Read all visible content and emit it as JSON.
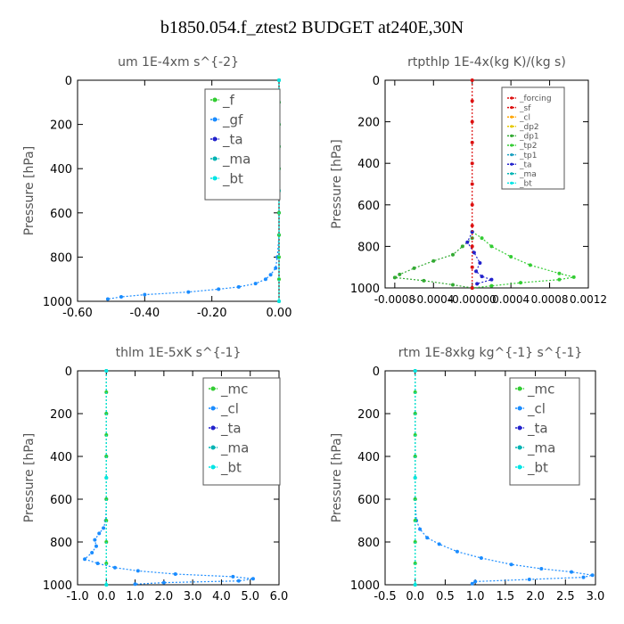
{
  "figure": {
    "title": "b1850.054.f_ztest2  BUDGET at240E,30N"
  },
  "colors": {
    "green": "#33cc33",
    "blue": "#1a8cff",
    "navy": "#2222cc",
    "cyan": "#00e5e5",
    "red": "#dd1111",
    "orange": "#ffa500",
    "yellow": "#e6c800",
    "teal": "#1aa0c0",
    "axis": "#000000",
    "label": "#555555"
  },
  "chart_data": [
    {
      "type": "line",
      "title": "um  1E-4xm s^{-2}",
      "ylabel": "Pressure [hPa]",
      "xlim": [
        -0.6,
        0.0
      ],
      "ylim": [
        0,
        1000
      ],
      "y_inverted": true,
      "xticks": [
        "-0.60",
        "-0.40",
        "-0.20",
        "0.00"
      ],
      "xtick_values": [
        -0.6,
        -0.4,
        -0.2,
        0.0
      ],
      "yticks": [
        "0",
        "200",
        "400",
        "600",
        "800",
        "1000"
      ],
      "ytick_values": [
        0,
        200,
        400,
        600,
        800,
        1000
      ],
      "legend": {
        "position": "top-right",
        "entries": [
          {
            "name": "_f",
            "color": "#33cc33"
          },
          {
            "name": "_gf",
            "color": "#1a8cff"
          },
          {
            "name": "_ta",
            "color": "#2222cc"
          },
          {
            "name": "_ma",
            "color": "#00b3b3"
          },
          {
            "name": "_bt",
            "color": "#00e5e5"
          }
        ]
      },
      "series": [
        {
          "name": "_gf",
          "color": "#1a8cff",
          "points": [
            [
              0.0,
              0
            ],
            [
              0.0,
              100
            ],
            [
              0.0,
              200
            ],
            [
              0.0,
              300
            ],
            [
              0.0,
              400
            ],
            [
              0.0,
              500
            ],
            [
              0.0,
              600
            ],
            [
              0.0,
              700
            ],
            [
              -0.005,
              800
            ],
            [
              -0.01,
              850
            ],
            [
              -0.025,
              880
            ],
            [
              -0.04,
              900
            ],
            [
              -0.07,
              920
            ],
            [
              -0.12,
              935
            ],
            [
              -0.18,
              945
            ],
            [
              -0.27,
              958
            ],
            [
              -0.4,
              970
            ],
            [
              -0.47,
              980
            ],
            [
              -0.51,
              990
            ]
          ]
        },
        {
          "name": "_f",
          "color": "#33cc33",
          "points": [
            [
              0.0,
              0
            ],
            [
              0.0,
              100
            ],
            [
              0.0,
              200
            ],
            [
              0.0,
              300
            ],
            [
              0.0,
              400
            ],
            [
              0.0,
              500
            ],
            [
              0.0,
              600
            ],
            [
              0.0,
              700
            ],
            [
              0.0,
              800
            ],
            [
              0.0,
              900
            ],
            [
              0.0,
              1000
            ]
          ]
        },
        {
          "name": "_bt",
          "color": "#00e5e5",
          "points": [
            [
              0.0,
              0
            ],
            [
              0.0,
              500
            ],
            [
              0.0,
              1000
            ]
          ]
        }
      ]
    },
    {
      "type": "line",
      "title": "rtpthlp  1E-4x(kg K)/(kg s)",
      "ylabel": "Pressure [hPa]",
      "xlim": [
        -0.0009,
        0.0012
      ],
      "ylim": [
        0,
        1000
      ],
      "y_inverted": true,
      "xticks": [
        "-0.0008",
        "-0.0004",
        "-0.00000",
        "0.0004",
        "0.0008",
        "0.0012"
      ],
      "xtick_values": [
        -0.0008,
        -0.0004,
        0.0,
        0.0004,
        0.0008,
        0.0012
      ],
      "yticks": [
        "0",
        "200",
        "400",
        "600",
        "800",
        "1000"
      ],
      "ytick_values": [
        0,
        200,
        400,
        600,
        800,
        1000
      ],
      "legend": {
        "position": "top-right",
        "entries": [
          {
            "name": "_forcing",
            "color": "#dd1111"
          },
          {
            "name": "_sf",
            "color": "#dd1111"
          },
          {
            "name": "_cl",
            "color": "#ffa500"
          },
          {
            "name": "_dp2",
            "color": "#e6c800"
          },
          {
            "name": "_dp1",
            "color": "#33aa33"
          },
          {
            "name": "_tp2",
            "color": "#33cc33"
          },
          {
            "name": "_tp1",
            "color": "#1aa0c0"
          },
          {
            "name": "_ta",
            "color": "#2222cc"
          },
          {
            "name": "_ma",
            "color": "#00b3b3"
          },
          {
            "name": "_bt",
            "color": "#00e5e5"
          }
        ]
      },
      "series": [
        {
          "name": "_tp2",
          "color": "#33cc33",
          "points": [
            [
              0.0,
              730
            ],
            [
              0.0001,
              760
            ],
            [
              0.0002,
              800
            ],
            [
              0.0004,
              850
            ],
            [
              0.0006,
              890
            ],
            [
              0.0009,
              930
            ],
            [
              0.00105,
              948
            ],
            [
              0.0009,
              960
            ],
            [
              0.0005,
              975
            ],
            [
              0.0002,
              990
            ],
            [
              0.0,
              1000
            ]
          ]
        },
        {
          "name": "_dp1",
          "color": "#33aa33",
          "points": [
            [
              0.0,
              760
            ],
            [
              -0.0001,
              800
            ],
            [
              -0.0002,
              840
            ],
            [
              -0.0004,
              870
            ],
            [
              -0.0006,
              905
            ],
            [
              -0.00075,
              935
            ],
            [
              -0.0008,
              950
            ],
            [
              -0.0005,
              965
            ],
            [
              -0.0002,
              985
            ],
            [
              0.0,
              1000
            ]
          ]
        },
        {
          "name": "_ta",
          "color": "#2222cc",
          "points": [
            [
              0.0,
              730
            ],
            [
              -5e-05,
              780
            ],
            [
              2e-05,
              830
            ],
            [
              8e-05,
              880
            ],
            [
              4e-05,
              920
            ],
            [
              0.0001,
              945
            ],
            [
              0.0002,
              960
            ],
            [
              5e-05,
              980
            ]
          ]
        },
        {
          "name": "_sf",
          "color": "#dd1111",
          "points": [
            [
              0.0,
              0
            ],
            [
              0.0,
              100
            ],
            [
              0.0,
              200
            ],
            [
              0.0,
              300
            ],
            [
              0.0,
              400
            ],
            [
              0.0,
              500
            ],
            [
              0.0,
              600
            ],
            [
              0.0,
              700
            ],
            [
              0.0,
              800
            ],
            [
              0.0,
              900
            ],
            [
              0.0,
              1000
            ]
          ]
        }
      ]
    },
    {
      "type": "line",
      "title": "thlm  1E-5xK s^{-1}",
      "ylabel": "Pressure [hPa]",
      "xlim": [
        -1.0,
        6.0
      ],
      "ylim": [
        0,
        1000
      ],
      "y_inverted": true,
      "xticks": [
        "-1.0",
        "0.0",
        "1.0",
        "2.0",
        "3.0",
        "4.0",
        "5.0",
        "6.0"
      ],
      "xtick_values": [
        -1.0,
        0.0,
        1.0,
        2.0,
        3.0,
        4.0,
        5.0,
        6.0
      ],
      "yticks": [
        "0",
        "200",
        "400",
        "600",
        "800",
        "1000"
      ],
      "ytick_values": [
        0,
        200,
        400,
        600,
        800,
        1000
      ],
      "legend": {
        "position": "top-right",
        "entries": [
          {
            "name": "_mc",
            "color": "#33cc33"
          },
          {
            "name": "_cl",
            "color": "#1a8cff"
          },
          {
            "name": "_ta",
            "color": "#2222cc"
          },
          {
            "name": "_ma",
            "color": "#00b3b3"
          },
          {
            "name": "_bt",
            "color": "#00e5e5"
          }
        ]
      },
      "series": [
        {
          "name": "_cl",
          "color": "#1a8cff",
          "points": [
            [
              0.0,
              0
            ],
            [
              0.0,
              200
            ],
            [
              0.0,
              400
            ],
            [
              0.0,
              600
            ],
            [
              -0.02,
              700
            ],
            [
              -0.1,
              735
            ],
            [
              -0.25,
              760
            ],
            [
              -0.4,
              790
            ],
            [
              -0.35,
              820
            ],
            [
              -0.5,
              850
            ],
            [
              -0.75,
              880
            ],
            [
              -0.3,
              900
            ],
            [
              0.3,
              920
            ],
            [
              1.1,
              935
            ],
            [
              2.4,
              950
            ],
            [
              4.4,
              962
            ],
            [
              5.1,
              972
            ],
            [
              4.6,
              982
            ],
            [
              2.0,
              990
            ],
            [
              1.0,
              997
            ]
          ]
        },
        {
          "name": "_mc",
          "color": "#33cc33",
          "points": [
            [
              0.0,
              0
            ],
            [
              0.0,
              100
            ],
            [
              0.0,
              200
            ],
            [
              0.0,
              300
            ],
            [
              0.0,
              400
            ],
            [
              0.0,
              500
            ],
            [
              0.0,
              600
            ],
            [
              0.0,
              700
            ],
            [
              0.0,
              800
            ],
            [
              0.0,
              900
            ],
            [
              0.0,
              1000
            ]
          ]
        },
        {
          "name": "_bt",
          "color": "#00e5e5",
          "points": [
            [
              0.0,
              0
            ],
            [
              0.0,
              500
            ],
            [
              0.0,
              1000
            ]
          ]
        }
      ]
    },
    {
      "type": "line",
      "title": "rtm  1E-8xkg kg^{-1} s^{-1}",
      "ylabel": "Pressure [hPa]",
      "xlim": [
        -0.5,
        3.0
      ],
      "ylim": [
        0,
        1000
      ],
      "y_inverted": true,
      "xticks": [
        "-0.5",
        "0.0",
        "0.5",
        "1.0",
        "1.5",
        "2.0",
        "2.5",
        "3.0"
      ],
      "xtick_values": [
        -0.5,
        0.0,
        0.5,
        1.0,
        1.5,
        2.0,
        2.5,
        3.0
      ],
      "yticks": [
        "0",
        "200",
        "400",
        "600",
        "800",
        "1000"
      ],
      "ytick_values": [
        0,
        200,
        400,
        600,
        800,
        1000
      ],
      "legend": {
        "position": "top-right",
        "entries": [
          {
            "name": "_mc",
            "color": "#33cc33"
          },
          {
            "name": "_cl",
            "color": "#1a8cff"
          },
          {
            "name": "_ta",
            "color": "#2222cc"
          },
          {
            "name": "_ma",
            "color": "#00b3b3"
          },
          {
            "name": "_bt",
            "color": "#00e5e5"
          }
        ]
      },
      "series": [
        {
          "name": "_cl",
          "color": "#1a8cff",
          "points": [
            [
              0.0,
              0
            ],
            [
              0.0,
              200
            ],
            [
              0.0,
              400
            ],
            [
              0.0,
              600
            ],
            [
              0.02,
              700
            ],
            [
              0.08,
              740
            ],
            [
              0.2,
              780
            ],
            [
              0.4,
              810
            ],
            [
              0.7,
              845
            ],
            [
              1.1,
              875
            ],
            [
              1.6,
              905
            ],
            [
              2.1,
              925
            ],
            [
              2.6,
              940
            ],
            [
              2.95,
              955
            ],
            [
              2.8,
              965
            ],
            [
              1.9,
              975
            ],
            [
              1.0,
              985
            ],
            [
              0.95,
              995
            ]
          ]
        },
        {
          "name": "_mc",
          "color": "#33cc33",
          "points": [
            [
              0.0,
              0
            ],
            [
              0.0,
              100
            ],
            [
              0.0,
              200
            ],
            [
              0.0,
              300
            ],
            [
              0.0,
              400
            ],
            [
              0.0,
              500
            ],
            [
              0.0,
              600
            ],
            [
              0.0,
              700
            ],
            [
              0.0,
              800
            ],
            [
              0.0,
              900
            ],
            [
              0.0,
              1000
            ]
          ]
        },
        {
          "name": "_bt",
          "color": "#00e5e5",
          "points": [
            [
              0.0,
              0
            ],
            [
              0.0,
              500
            ],
            [
              0.0,
              1000
            ]
          ]
        }
      ]
    }
  ]
}
